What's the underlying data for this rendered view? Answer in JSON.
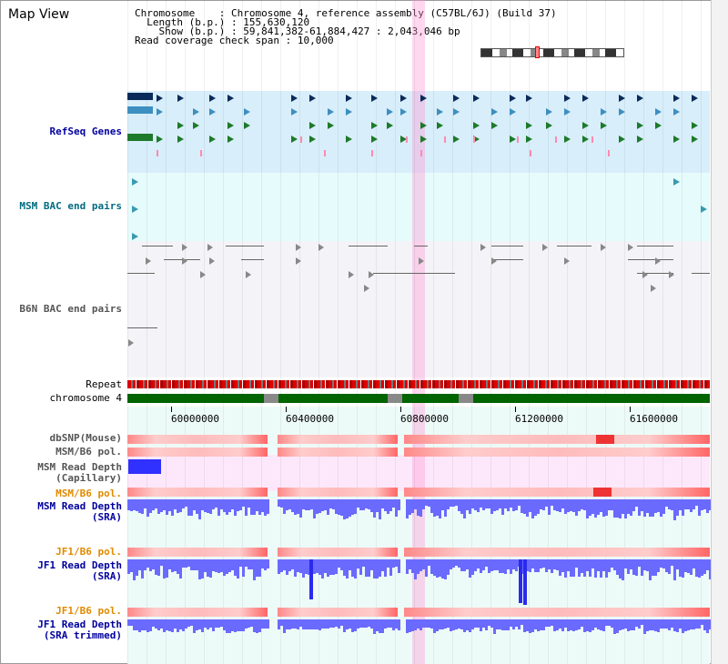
{
  "window": {
    "title": "Map View"
  },
  "info": {
    "chromosome_label": "Chromosome",
    "chromosome_value": "Chromosome 4, reference assembly (C57BL/6J) (Build 37)",
    "length_label": "Length (b.p.)",
    "length_value": "155,630,120",
    "show_label": "Show (b.p.)",
    "show_value": "59,841,382-61,884,427 : 2,043,046 bp",
    "coverage_label": "Read coverage check span",
    "coverage_value": "10,000"
  },
  "tracks": {
    "refseq": "RefSeq Genes",
    "msm_bac": "MSM BAC end pairs",
    "b6n_bac": "B6N BAC end pairs",
    "repeat": "Repeat",
    "chromosome": "chromosome 4",
    "dbsnp": "dbSNP(Mouse)",
    "msm_b6_pol": "MSM/B6 pol.",
    "msm_depth_cap_1": "MSM Read Depth",
    "msm_depth_cap_2": "(Capillary)",
    "msm_b6_pol2": "MSM/B6 pol.",
    "msm_depth_sra_1": "MSM Read Depth",
    "msm_depth_sra_2": "(SRA)",
    "jf1_b6_pol": "JF1/B6 pol.",
    "jf1_depth_sra_1": "JF1 Read Depth",
    "jf1_depth_sra_2": "(SRA)",
    "jf1_b6_pol2": "JF1/B6 pol.",
    "jf1_depth_trim_1": "JF1 Read Depth",
    "jf1_depth_trim_2": "(SRA trimmed)"
  },
  "axis": {
    "ticks": [
      "60000000",
      "60400000",
      "60800000",
      "61200000",
      "61600000"
    ]
  },
  "colors": {
    "refseq_bg": "#d8eefa",
    "bac_bg": "#e6fbfb",
    "b6n_bg": "#f4f4f8",
    "pol_bg": "#ffe0e0",
    "depth_bg": "#eefbee",
    "depth_bar": "#6060ff",
    "highlight": "#ff96d2",
    "chromosome": "#006400"
  }
}
